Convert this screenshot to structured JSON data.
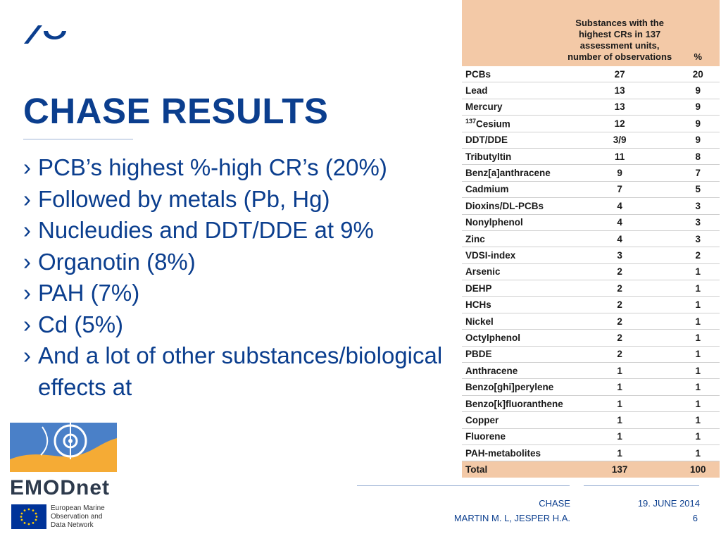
{
  "slide": {
    "title": "CHASE RESULTS",
    "bullets": [
      {
        "mark": "›",
        "text": "PCB’s highest %-high CR’s (20%)"
      },
      {
        "mark": "›",
        "text": "Followed by metals (Pb, Hg)"
      },
      {
        "mark": "›",
        "text": "Nucleudies and DDT/DDE at 9%"
      },
      {
        "mark": "›",
        "text": "Organotin (8%)"
      },
      {
        "mark": "›",
        "text": "PAH (7%)"
      },
      {
        "mark": "›",
        "text": "Cd (5%)"
      },
      {
        "mark": "›",
        "text": "And a lot of other substances/biological effects at"
      }
    ]
  },
  "table": {
    "header": {
      "substance": "Substances with the highest CRs in 137 assessment units, number of observations",
      "percent": "%"
    },
    "rows": [
      {
        "name": "PCBs",
        "count": "27",
        "pct": "20"
      },
      {
        "name": "Lead",
        "count": "13",
        "pct": "9"
      },
      {
        "name": "Mercury",
        "count": "13",
        "pct": "9"
      },
      {
        "name": "Cesium",
        "prefix": "137",
        "count": "12",
        "pct": "9"
      },
      {
        "name": "DDT/DDE",
        "count": "3/9",
        "pct": "9"
      },
      {
        "name": "Tributyltin",
        "count": "11",
        "pct": "8"
      },
      {
        "name": "Benz[a]anthracene",
        "count": "9",
        "pct": "7"
      },
      {
        "name": "Cadmium",
        "count": "7",
        "pct": "5"
      },
      {
        "name": "Dioxins/DL-PCBs",
        "count": "4",
        "pct": "3"
      },
      {
        "name": "Nonylphenol",
        "count": "4",
        "pct": "3"
      },
      {
        "name": "Zinc",
        "count": "4",
        "pct": "3"
      },
      {
        "name": "VDSI-index",
        "count": "3",
        "pct": "2"
      },
      {
        "name": "Arsenic",
        "count": "2",
        "pct": "1"
      },
      {
        "name": "DEHP",
        "count": "2",
        "pct": "1"
      },
      {
        "name": "HCHs",
        "count": "2",
        "pct": "1"
      },
      {
        "name": "Nickel",
        "count": "2",
        "pct": "1"
      },
      {
        "name": "Octylphenol",
        "count": "2",
        "pct": "1"
      },
      {
        "name": "PBDE",
        "count": "2",
        "pct": "1"
      },
      {
        "name": "Anthracene",
        "count": "1",
        "pct": "1"
      },
      {
        "name": "Benzo[ghi]perylene",
        "count": "1",
        "pct": "1"
      },
      {
        "name": "Benzo[k]fluoranthene",
        "count": "1",
        "pct": "1"
      },
      {
        "name": "Copper",
        "count": "1",
        "pct": "1"
      },
      {
        "name": "Fluorene",
        "count": "1",
        "pct": "1"
      },
      {
        "name": "PAH-metabolites",
        "count": "1",
        "pct": "1"
      }
    ],
    "total": {
      "name": "Total",
      "count": "137",
      "pct": "100"
    }
  },
  "branding": {
    "emodnet_word": "EMODnet",
    "eu_text": [
      "European Marine",
      "Observation and",
      "Data Network"
    ],
    "logo_icon": "aarhus-wave-logo-icon",
    "accent_color": "#0b3e8e",
    "table_header_color": "#f3c9a7"
  },
  "footer": {
    "project": "CHASE",
    "authors": "MARTIN M. L, JESPER H.A.",
    "date": "19. JUNE 2014",
    "page": "6"
  }
}
